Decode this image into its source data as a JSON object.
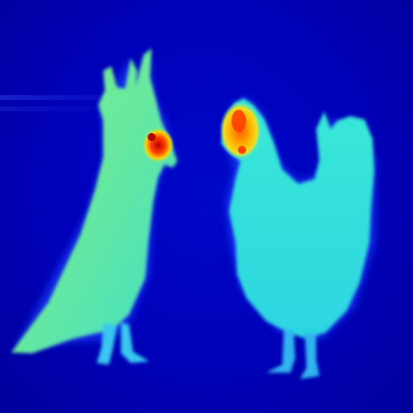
{
  "image": {
    "kind": "thermal-photograph",
    "subjects": [
      "cockatiel",
      "chicken"
    ],
    "palette": {
      "background": "#0000b4",
      "cool": "#1a40ff",
      "mid": "#2ee6d8",
      "warm_body": "#6fe89a",
      "hot": "#ffcc00",
      "hottest": "#d40000"
    }
  }
}
